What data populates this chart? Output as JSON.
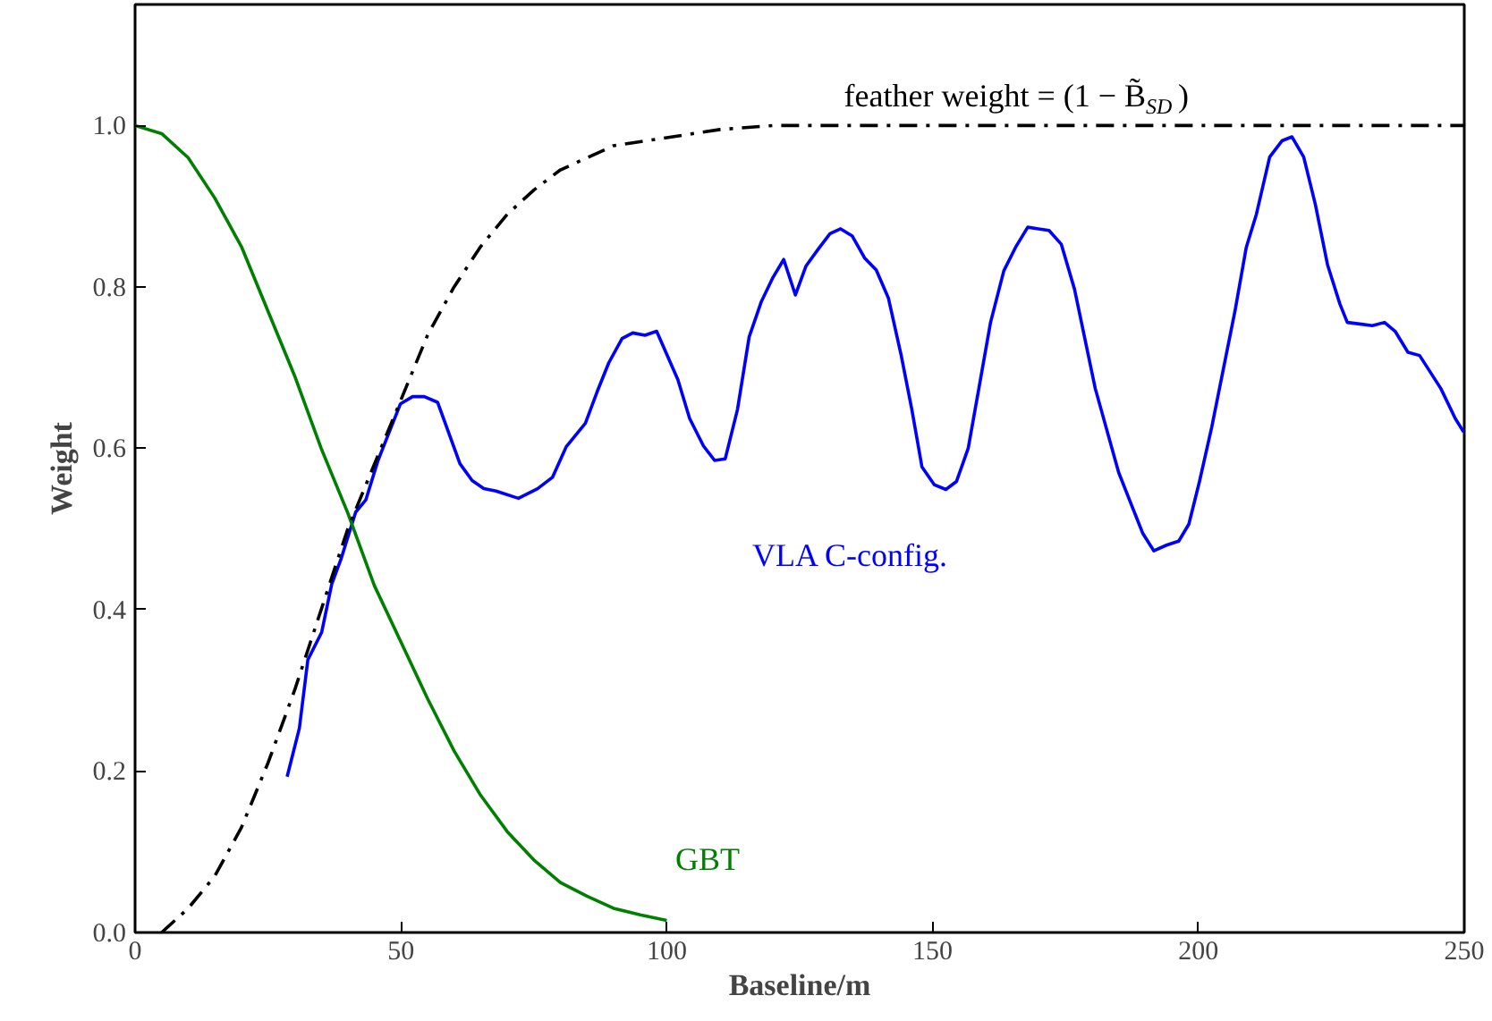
{
  "chart_data": {
    "type": "line",
    "xlabel": "Baseline/m",
    "ylabel": "Weight",
    "xlim": [
      0,
      250
    ],
    "ylim": [
      0,
      1.15
    ],
    "xticks": [
      0,
      50,
      100,
      150,
      200,
      250
    ],
    "yticks": [
      {
        "value": 0,
        "label": "0.0"
      },
      {
        "value": 0.2,
        "label": "0.2"
      },
      {
        "value": 0.4,
        "label": "0.4"
      },
      {
        "value": 0.6,
        "label": "0.6"
      },
      {
        "value": 0.8,
        "label": "0.8"
      },
      {
        "value": 1,
        "label": "1.0"
      }
    ],
    "grid": false,
    "series": [
      {
        "name": "VLA C-config.",
        "color": "#0000ff",
        "line_style": "solid",
        "x": [
          28.6,
          30.9,
          32.5,
          35.1,
          37,
          38.7,
          41.5,
          43.4,
          45.7,
          49.9,
          52.2,
          54.4,
          56.9,
          61.1,
          63.4,
          65.6,
          67.9,
          72.1,
          75.7,
          78.5,
          81.1,
          84.7,
          86.9,
          89.1,
          91.6,
          93.6,
          95.9,
          98.1,
          102.1,
          104.3,
          106.9,
          109,
          111,
          113.3,
          115.5,
          117.8,
          120,
          122,
          124.2,
          126.2,
          128.4,
          130.7,
          132.7,
          134.9,
          137.2,
          139.4,
          141.7,
          144.1,
          146.1,
          148,
          150.3,
          152.5,
          154.5,
          156.7,
          158.7,
          160.9,
          163.4,
          165.6,
          167.9,
          169.9,
          171.9,
          174.2,
          176.7,
          180.6,
          185,
          189.5,
          191.6,
          194,
          196.3,
          198.2,
          200.2,
          202.5,
          205.2,
          206.9,
          209,
          210.9,
          213.4,
          215.7,
          217.6,
          219.8,
          222,
          224.3,
          226.6,
          228,
          232.7,
          235,
          237,
          239.4,
          241.6,
          245.6,
          248.3,
          249.9
        ],
        "values": [
          0.193,
          0.253,
          0.338,
          0.372,
          0.432,
          0.462,
          0.521,
          0.536,
          0.585,
          0.655,
          0.664,
          0.664,
          0.657,
          0.581,
          0.56,
          0.55,
          0.547,
          0.538,
          0.55,
          0.564,
          0.602,
          0.631,
          0.67,
          0.706,
          0.736,
          0.743,
          0.74,
          0.745,
          0.685,
          0.637,
          0.603,
          0.585,
          0.587,
          0.648,
          0.738,
          0.782,
          0.812,
          0.834,
          0.79,
          0.826,
          0.846,
          0.866,
          0.872,
          0.863,
          0.836,
          0.821,
          0.786,
          0.715,
          0.648,
          0.577,
          0.555,
          0.549,
          0.559,
          0.6,
          0.674,
          0.756,
          0.82,
          0.849,
          0.874,
          0.872,
          0.87,
          0.853,
          0.797,
          0.674,
          0.57,
          0.495,
          0.473,
          0.48,
          0.485,
          0.506,
          0.559,
          0.626,
          0.715,
          0.771,
          0.849,
          0.89,
          0.961,
          0.981,
          0.986,
          0.961,
          0.902,
          0.827,
          0.779,
          0.756,
          0.752,
          0.756,
          0.745,
          0.719,
          0.715,
          0.674,
          0.637,
          0.62
        ]
      },
      {
        "name": "GBT",
        "color": "#008000",
        "line_style": "solid",
        "x": [
          0,
          5,
          10,
          15,
          20,
          25,
          30,
          35,
          40,
          45,
          50,
          55,
          60,
          65,
          70,
          75,
          80,
          85,
          90,
          95,
          100
        ],
        "values": [
          1.0,
          0.99,
          0.96,
          0.91,
          0.85,
          0.77,
          0.69,
          0.6,
          0.52,
          0.43,
          0.36,
          0.29,
          0.225,
          0.17,
          0.125,
          0.09,
          0.062,
          0.045,
          0.03,
          0.022,
          0.015
        ]
      },
      {
        "name": "feather weight = (1 − B̃$_{SD}$)",
        "color": "#000000",
        "line_style": "dashdot",
        "x": [
          5,
          10,
          15,
          20,
          25,
          30,
          35,
          40,
          45,
          50,
          55,
          60,
          65,
          70,
          75,
          80,
          85,
          90,
          95,
          100,
          110,
          120,
          250
        ],
        "values": [
          0.0,
          0.03,
          0.07,
          0.13,
          0.21,
          0.3,
          0.4,
          0.5,
          0.58,
          0.66,
          0.74,
          0.8,
          0.85,
          0.89,
          0.92,
          0.945,
          0.96,
          0.975,
          0.98,
          0.985,
          0.995,
          1.0,
          1.0
        ]
      }
    ]
  }
}
